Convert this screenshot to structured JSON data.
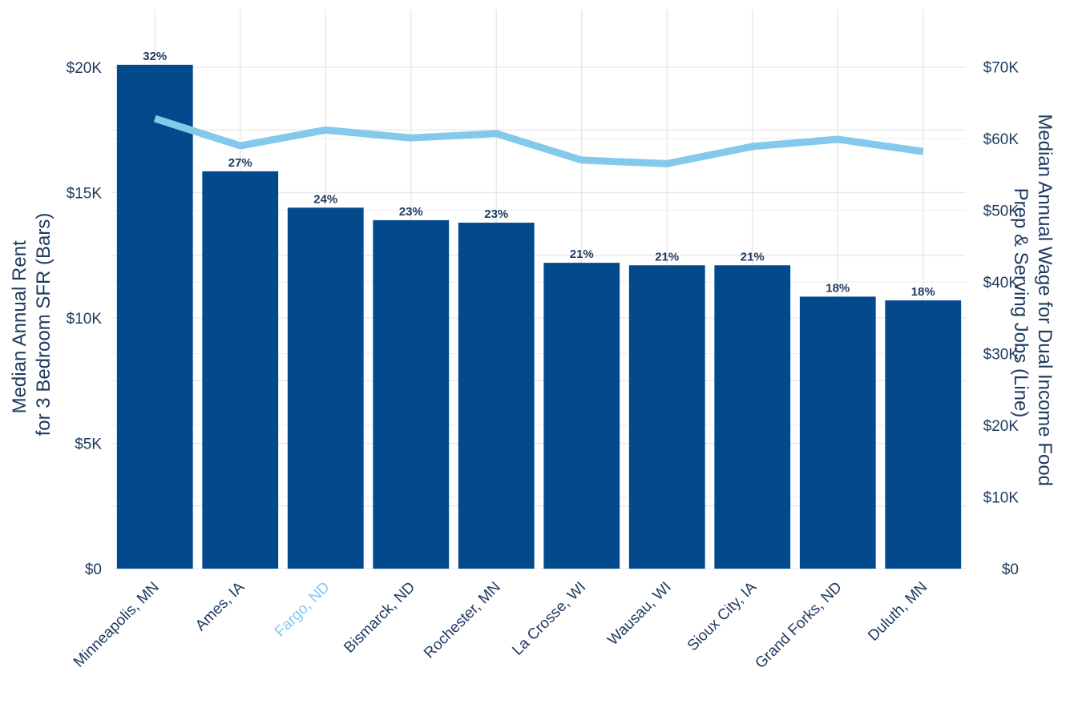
{
  "chart_data": {
    "type": "bar",
    "combo": "bar-with-line-secondary-axis",
    "categories": [
      "Minneapolis, MN",
      "Ames, IA",
      "Fargo, ND",
      "Bismarck, ND",
      "Rochester, MN",
      "La Crosse, WI",
      "Wausau, WI",
      "Sioux City, IA",
      "Grand Forks, ND",
      "Duluth, MN"
    ],
    "highlight_category": "Fargo, ND",
    "bars": {
      "axis": "left",
      "values": [
        20100,
        15850,
        14400,
        13900,
        13800,
        12200,
        12100,
        12100,
        10850,
        10700
      ],
      "data_labels": [
        "32%",
        "27%",
        "24%",
        "23%",
        "23%",
        "21%",
        "21%",
        "21%",
        "18%",
        "18%"
      ]
    },
    "line": {
      "axis": "right",
      "values": [
        62800,
        59000,
        61200,
        60100,
        60700,
        57000,
        56500,
        58900,
        59900,
        58200
      ]
    },
    "ylabel_left": [
      "Median Annual Rent",
      "for 3 Bedroom SFR (Bars)"
    ],
    "ylabel_right": [
      "Median Annual Wage for Dual Income Food",
      "Prep & Serving Jobs (Line)"
    ],
    "ylim_left": [
      0,
      22300
    ],
    "ylim_right": [
      0,
      78000
    ],
    "yticks_left": [
      {
        "value": 0,
        "label": "$0"
      },
      {
        "value": 5000,
        "label": "$5K"
      },
      {
        "value": 10000,
        "label": "$10K"
      },
      {
        "value": 15000,
        "label": "$15K"
      },
      {
        "value": 20000,
        "label": "$20K"
      }
    ],
    "yticks_right": [
      {
        "value": 0,
        "label": "$0"
      },
      {
        "value": 10000,
        "label": "$10K"
      },
      {
        "value": 20000,
        "label": "$20K"
      },
      {
        "value": 30000,
        "label": "$30K"
      },
      {
        "value": 40000,
        "label": "$40K"
      },
      {
        "value": 50000,
        "label": "$50K"
      },
      {
        "value": 60000,
        "label": "$60K"
      },
      {
        "value": 70000,
        "label": "$70K"
      }
    ],
    "grid": true,
    "legend": "none",
    "colors": {
      "bar": "#024a8c",
      "line": "#84c9ec",
      "highlight_label": "#84c9ec",
      "text": "#1f3a5f",
      "grid": "#e6e6e6"
    }
  }
}
